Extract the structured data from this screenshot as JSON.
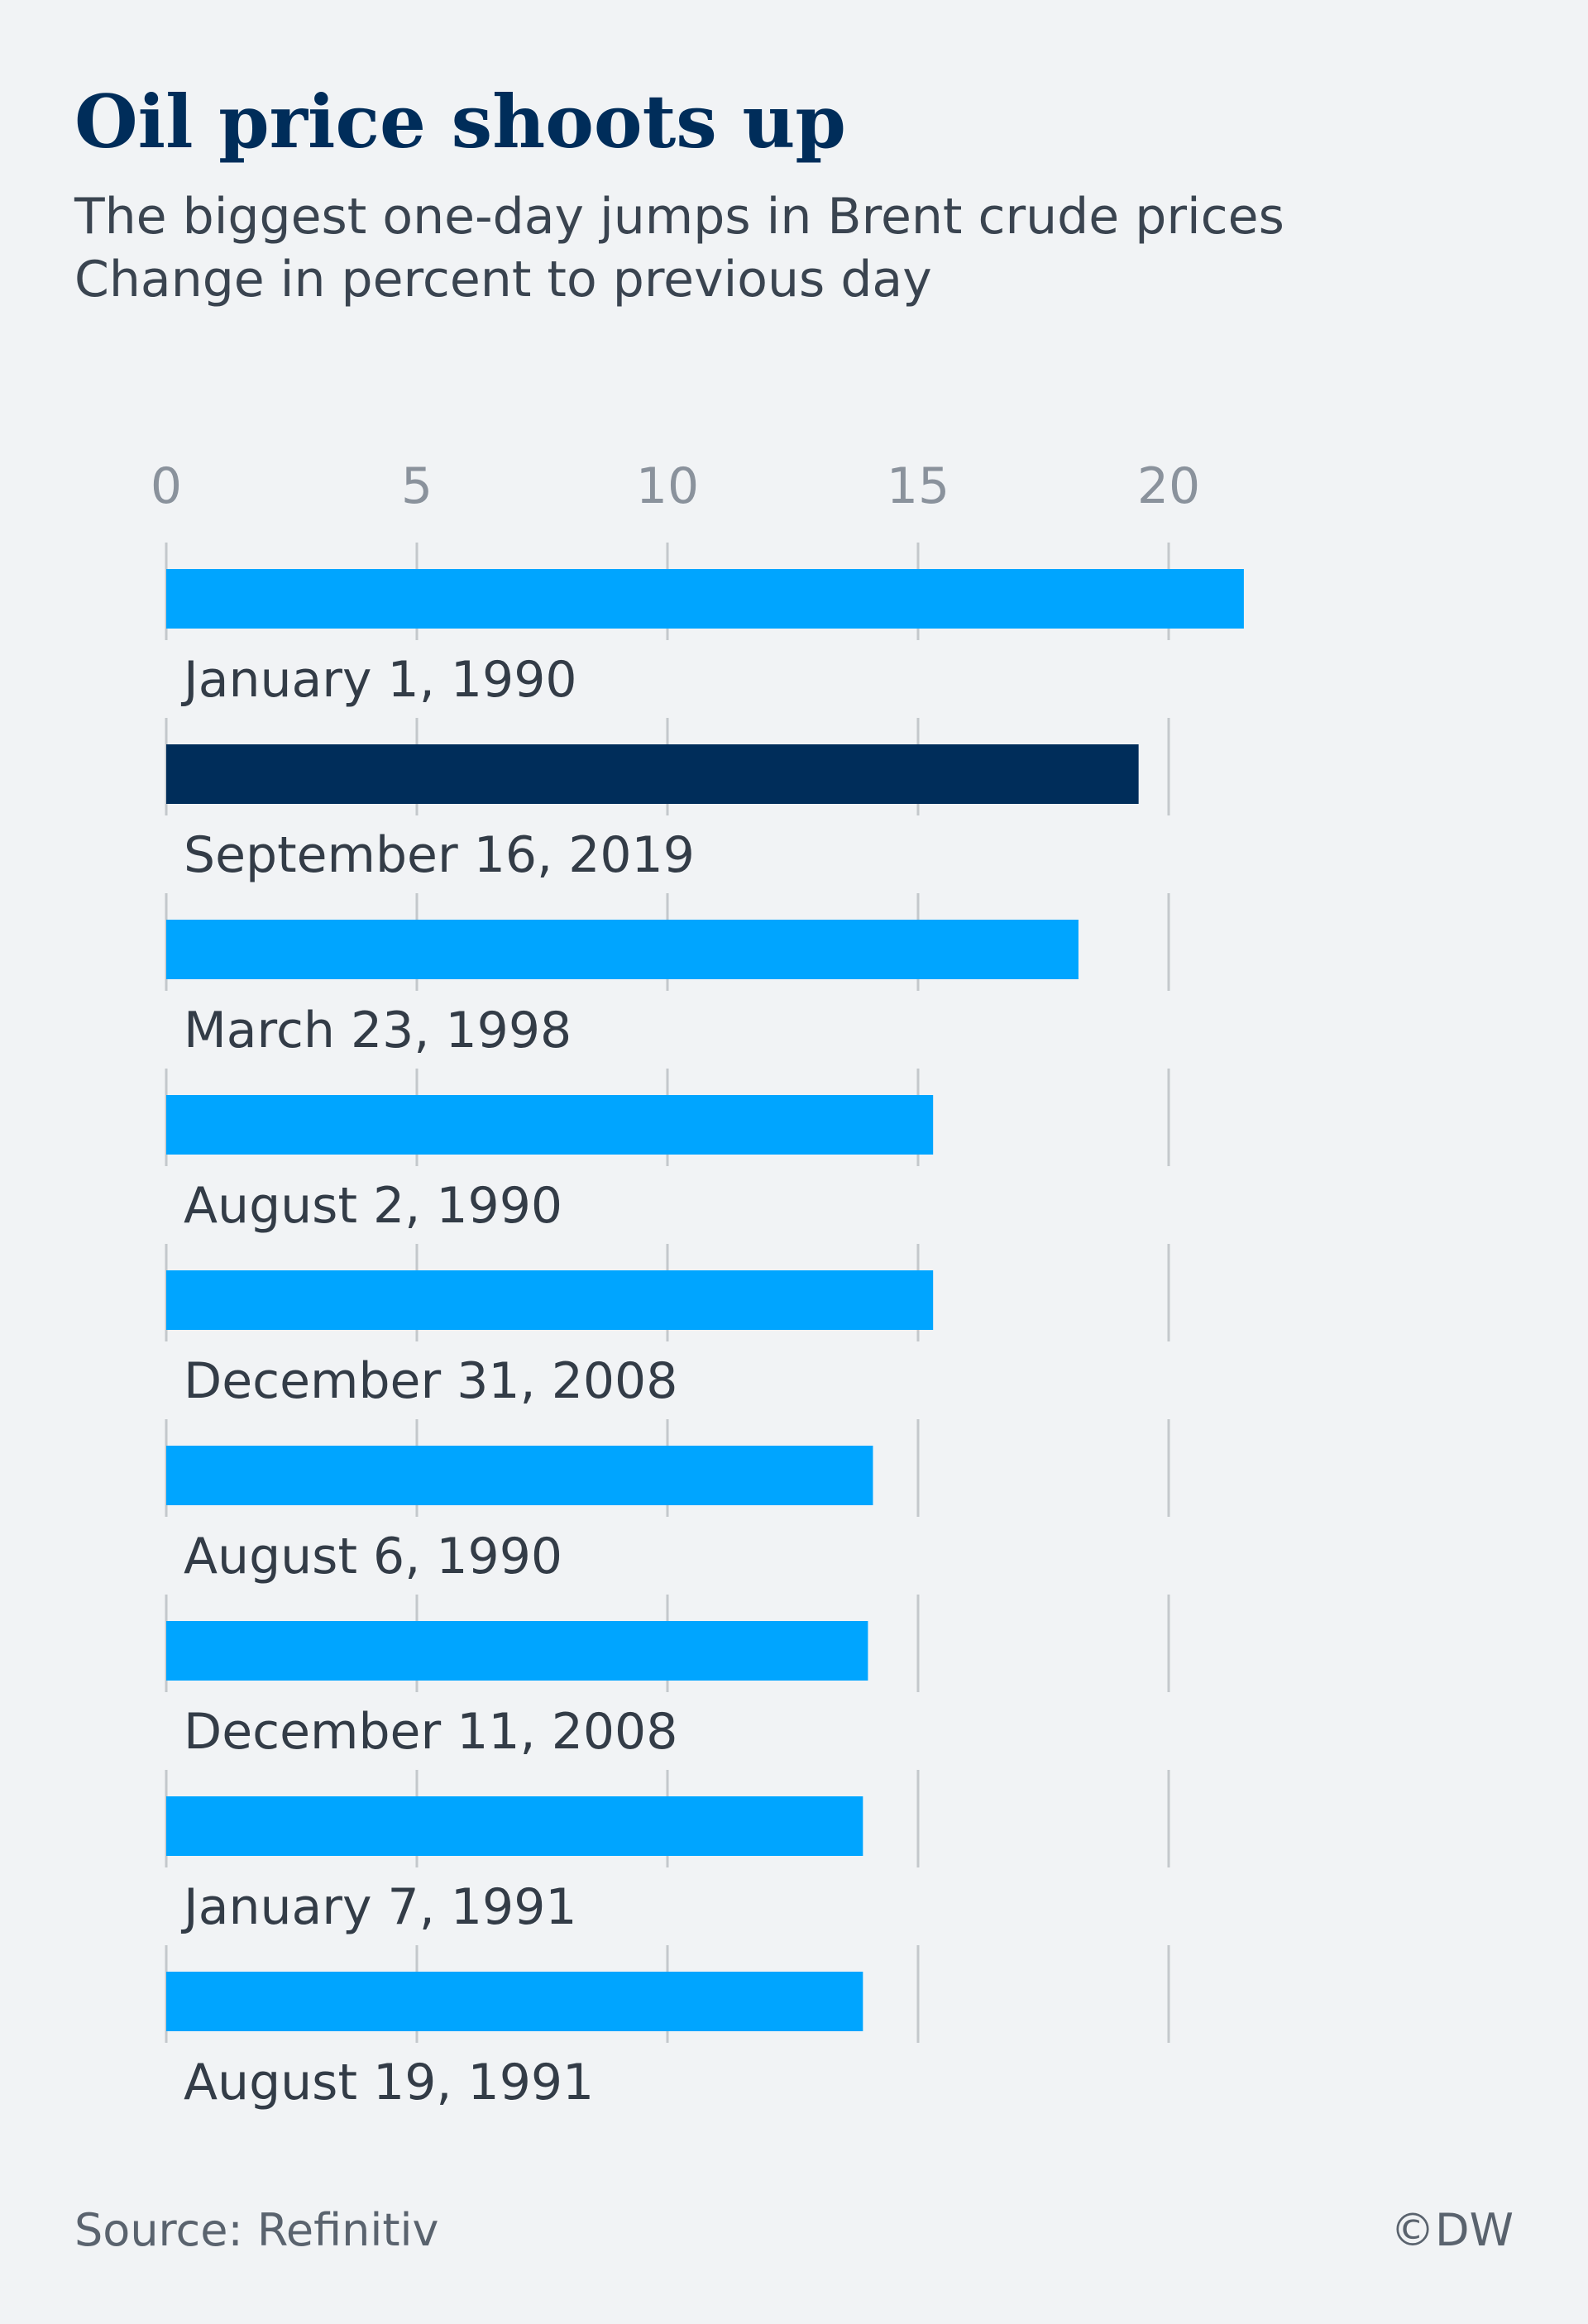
{
  "chart_data": {
    "type": "bar",
    "orientation": "horizontal",
    "title": "Oil price shoots up",
    "subtitle": [
      "The biggest one-day jumps in Brent crude prices",
      "Change in percent to previous day"
    ],
    "categories": [
      "January 1, 1990",
      "September 16, 2019",
      "March 23, 1998",
      "August 2, 1990",
      "December 31, 2008",
      "August 6, 1990",
      "December 11, 2008",
      "January 7, 1991",
      "August 19, 1991"
    ],
    "values": [
      21.5,
      19.4,
      18.2,
      15.3,
      15.3,
      14.1,
      14.0,
      13.9,
      13.9
    ],
    "colors": [
      "#00a5ff",
      "#002d5a",
      "#00a5ff",
      "#00a5ff",
      "#00a5ff",
      "#00a5ff",
      "#00a5ff",
      "#00a5ff",
      "#00a5ff"
    ],
    "xlim": [
      0,
      22
    ],
    "xticks": [
      0,
      5,
      10,
      15,
      20
    ],
    "grid": true,
    "source": "Source: Refinitiv",
    "credit": "©DW"
  }
}
